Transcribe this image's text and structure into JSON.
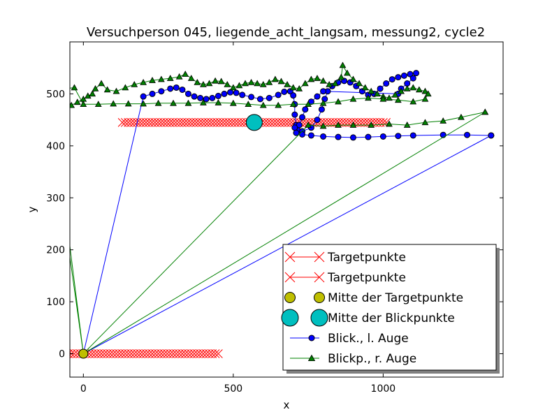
{
  "chart_data": {
    "type": "scatter",
    "title": "Versuchperson 045, liegende_acht_langsam, messung2, cycle2",
    "xlabel": "x",
    "ylabel": "y",
    "xlim": [
      -45,
      1400
    ],
    "ylim": [
      -45,
      600
    ],
    "xticks": [
      0,
      500,
      1000
    ],
    "yticks": [
      0,
      100,
      200,
      300,
      400,
      500
    ],
    "xtick_labels": [
      "0",
      "500",
      "1000"
    ],
    "ytick_labels": [
      "0",
      "100",
      "200",
      "300",
      "400",
      "500"
    ],
    "grid": false,
    "legend_position": "lower-right",
    "series": [
      {
        "name": "Targetpunkte",
        "kind": "x-line",
        "color": "#ff0000",
        "x_start": -440,
        "x_end": 450,
        "y": 0,
        "count": 90
      },
      {
        "name": "Targetpunkte",
        "kind": "x-line",
        "color": "#ff0000",
        "x_start": 130,
        "x_end": 1010,
        "y": 445,
        "count": 90
      },
      {
        "name": "Mitte der Targetpunkte",
        "kind": "big-circle",
        "color": "#bfbf00",
        "points": [
          [
            0,
            0
          ]
        ]
      },
      {
        "name": "Mitte der Blickpunkte",
        "kind": "big-circle",
        "color": "#00bfbf",
        "points": [
          [
            570,
            445
          ]
        ]
      },
      {
        "name": "Blick., l. Auge",
        "kind": "line-circle",
        "color": "#0000ff",
        "points": [
          [
            1360,
            420
          ],
          [
            0,
            0
          ],
          [
            0,
            0
          ],
          [
            200,
            495
          ],
          [
            230,
            500
          ],
          [
            260,
            505
          ],
          [
            290,
            510
          ],
          [
            310,
            512
          ],
          [
            330,
            508
          ],
          [
            350,
            500
          ],
          [
            370,
            495
          ],
          [
            390,
            492
          ],
          [
            410,
            490
          ],
          [
            430,
            492
          ],
          [
            450,
            496
          ],
          [
            470,
            500
          ],
          [
            490,
            503
          ],
          [
            510,
            502
          ],
          [
            530,
            498
          ],
          [
            560,
            494
          ],
          [
            590,
            490
          ],
          [
            620,
            492
          ],
          [
            650,
            498
          ],
          [
            670,
            504
          ],
          [
            690,
            505
          ],
          [
            700,
            497
          ],
          [
            705,
            480
          ],
          [
            705,
            460
          ],
          [
            710,
            440
          ],
          [
            715,
            430
          ],
          [
            730,
            428
          ],
          [
            760,
            435
          ],
          [
            780,
            450
          ],
          [
            795,
            470
          ],
          [
            805,
            490
          ],
          [
            815,
            505
          ],
          [
            830,
            515
          ],
          [
            850,
            522
          ],
          [
            870,
            525
          ],
          [
            890,
            522
          ],
          [
            910,
            515
          ],
          [
            930,
            505
          ],
          [
            950,
            498
          ],
          [
            970,
            500
          ],
          [
            990,
            510
          ],
          [
            1010,
            520
          ],
          [
            1030,
            528
          ],
          [
            1050,
            532
          ],
          [
            1070,
            535
          ],
          [
            1090,
            538
          ],
          [
            1110,
            540
          ],
          [
            1100,
            530
          ],
          [
            1080,
            520
          ],
          [
            1060,
            510
          ],
          [
            1050,
            500
          ],
          [
            800,
            505
          ],
          [
            780,
            495
          ],
          [
            760,
            485
          ],
          [
            740,
            470
          ],
          [
            730,
            455
          ],
          [
            720,
            440
          ],
          [
            705,
            435
          ],
          [
            710,
            425
          ],
          [
            730,
            422
          ],
          [
            760,
            420
          ],
          [
            800,
            418
          ],
          [
            850,
            417
          ],
          [
            900,
            416
          ],
          [
            950,
            417
          ],
          [
            1000,
            418
          ],
          [
            1050,
            419
          ],
          [
            1100,
            420
          ],
          [
            1200,
            421
          ],
          [
            1280,
            421
          ],
          [
            1360,
            420
          ]
        ]
      },
      {
        "name": "Blickp., r. Auge",
        "kind": "line-triangle",
        "color": "#008000",
        "points": [
          [
            1340,
            465
          ],
          [
            0,
            0
          ],
          [
            0,
            0
          ],
          [
            -110,
            455
          ],
          [
            -100,
            462
          ],
          [
            -90,
            466
          ],
          [
            -80,
            468
          ],
          [
            -60,
            472
          ],
          [
            -40,
            478
          ],
          [
            -20,
            484
          ],
          [
            0,
            490
          ],
          [
            15,
            496
          ],
          [
            30,
            500
          ],
          [
            40,
            510
          ],
          [
            60,
            520
          ],
          [
            80,
            508
          ],
          [
            110,
            505
          ],
          [
            140,
            512
          ],
          [
            170,
            518
          ],
          [
            200,
            522
          ],
          [
            230,
            526
          ],
          [
            260,
            528
          ],
          [
            290,
            530
          ],
          [
            320,
            533
          ],
          [
            340,
            538
          ],
          [
            360,
            530
          ],
          [
            380,
            522
          ],
          [
            400,
            518
          ],
          [
            420,
            520
          ],
          [
            440,
            525
          ],
          [
            460,
            524
          ],
          [
            480,
            518
          ],
          [
            500,
            512
          ],
          [
            520,
            516
          ],
          [
            540,
            520
          ],
          [
            560,
            522
          ],
          [
            580,
            520
          ],
          [
            600,
            518
          ],
          [
            620,
            522
          ],
          [
            640,
            528
          ],
          [
            660,
            524
          ],
          [
            680,
            518
          ],
          [
            700,
            512
          ],
          [
            720,
            510
          ],
          [
            740,
            520
          ],
          [
            760,
            528
          ],
          [
            780,
            530
          ],
          [
            800,
            525
          ],
          [
            820,
            518
          ],
          [
            840,
            520
          ],
          [
            860,
            532
          ],
          [
            865,
            555
          ],
          [
            880,
            540
          ],
          [
            900,
            528
          ],
          [
            920,
            520
          ],
          [
            940,
            512
          ],
          [
            960,
            505
          ],
          [
            980,
            500
          ],
          [
            1000,
            495
          ],
          [
            1020,
            492
          ],
          [
            1040,
            498
          ],
          [
            1060,
            505
          ],
          [
            1080,
            510
          ],
          [
            1100,
            512
          ],
          [
            1120,
            508
          ],
          [
            1140,
            505
          ],
          [
            1150,
            500
          ],
          [
            1140,
            490
          ],
          [
            1100,
            485
          ],
          [
            1050,
            488
          ],
          [
            1000,
            490
          ],
          [
            950,
            492
          ],
          [
            900,
            490
          ],
          [
            850,
            485
          ],
          [
            800,
            482
          ],
          [
            750,
            480
          ],
          [
            700,
            480
          ],
          [
            650,
            478
          ],
          [
            600,
            478
          ],
          [
            550,
            480
          ],
          [
            500,
            482
          ],
          [
            450,
            483
          ],
          [
            400,
            483
          ],
          [
            350,
            482
          ],
          [
            300,
            482
          ],
          [
            250,
            482
          ],
          [
            200,
            481
          ],
          [
            150,
            481
          ],
          [
            100,
            481
          ],
          [
            50,
            480
          ],
          [
            0,
            480
          ],
          [
            -30,
            512
          ],
          [
            -60,
            510
          ],
          [
            -90,
            513
          ],
          [
            -100,
            460
          ],
          [
            0,
            0
          ],
          [
            750,
            440
          ],
          [
            800,
            438
          ],
          [
            850,
            440
          ],
          [
            900,
            440
          ],
          [
            960,
            440
          ],
          [
            1020,
            442
          ],
          [
            1080,
            440
          ],
          [
            1140,
            445
          ],
          [
            1200,
            448
          ],
          [
            1260,
            455
          ],
          [
            1340,
            465
          ]
        ]
      }
    ]
  }
}
